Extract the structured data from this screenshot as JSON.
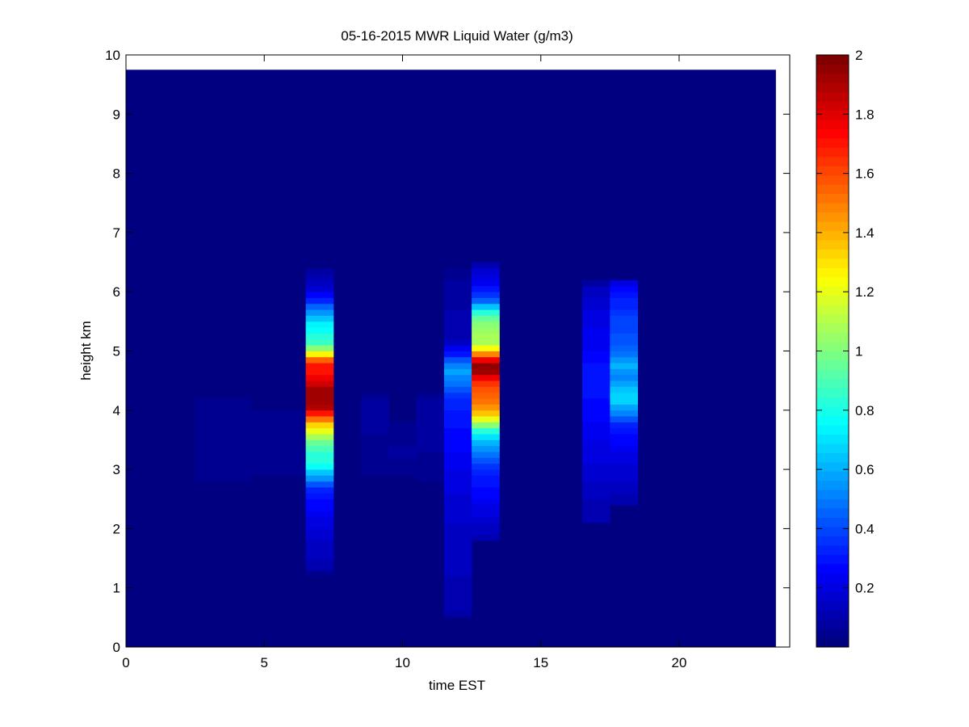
{
  "chart_data": {
    "type": "heatmap",
    "title": "05-16-2015 MWR Liquid Water (g/m3)",
    "xlabel": "time EST",
    "ylabel": "height km",
    "xlim": [
      0,
      24
    ],
    "ylim": [
      0,
      10
    ],
    "xticks": [
      0,
      5,
      10,
      15,
      20
    ],
    "yticks": [
      0,
      1,
      2,
      3,
      4,
      5,
      6,
      7,
      8,
      9,
      10
    ],
    "colormap": "jet",
    "background_value": 0.02,
    "data_extent": {
      "x": [
        0,
        23.5
      ],
      "y": [
        0,
        9.75
      ]
    },
    "colorbar": {
      "range": [
        0,
        2
      ],
      "ticks": [
        0.2,
        0.4,
        0.6,
        0.8,
        1,
        1.2,
        1.4,
        1.6,
        1.8,
        2
      ]
    },
    "columns": [
      {
        "x0": 2.5,
        "x1": 4.5,
        "profile": [
          [
            2.8,
            0.03
          ],
          [
            2.9,
            0.05
          ],
          [
            3.5,
            0.06
          ],
          [
            3.55,
            0.05
          ],
          [
            3.9,
            0.05
          ],
          [
            4.0,
            0.07
          ],
          [
            4.1,
            0.05
          ],
          [
            4.2,
            0.03
          ]
        ]
      },
      {
        "x0": 4.5,
        "x1": 5.5,
        "profile": [
          [
            2.9,
            0.03
          ],
          [
            3.0,
            0.05
          ],
          [
            3.6,
            0.06
          ],
          [
            3.65,
            0.04
          ],
          [
            3.95,
            0.05
          ],
          [
            4.05,
            0.03
          ]
        ]
      },
      {
        "x0": 5.5,
        "x1": 6.5,
        "profile": [
          [
            2.9,
            0.03
          ],
          [
            3.0,
            0.05
          ],
          [
            3.6,
            0.06
          ],
          [
            3.65,
            0.04
          ],
          [
            3.9,
            0.06
          ],
          [
            4.05,
            0.03
          ]
        ]
      },
      {
        "x0": 6.5,
        "x1": 7.5,
        "profile": [
          [
            1.2,
            0.02
          ],
          [
            1.4,
            0.12
          ],
          [
            1.7,
            0.14
          ],
          [
            2.0,
            0.18
          ],
          [
            2.4,
            0.26
          ],
          [
            2.7,
            0.36
          ],
          [
            2.9,
            0.6
          ],
          [
            3.1,
            0.8
          ],
          [
            3.3,
            0.85
          ],
          [
            3.5,
            1.0
          ],
          [
            3.65,
            1.2
          ],
          [
            3.8,
            1.4
          ],
          [
            3.95,
            1.7
          ],
          [
            4.05,
            1.88
          ],
          [
            4.3,
            1.95
          ],
          [
            4.45,
            1.82
          ],
          [
            4.6,
            1.72
          ],
          [
            4.8,
            1.68
          ],
          [
            4.9,
            1.4
          ],
          [
            5.0,
            1.15
          ],
          [
            5.1,
            0.88
          ],
          [
            5.3,
            0.8
          ],
          [
            5.5,
            0.7
          ],
          [
            5.7,
            0.5
          ],
          [
            5.85,
            0.33
          ],
          [
            6.1,
            0.14
          ],
          [
            6.3,
            0.1
          ],
          [
            6.45,
            0.02
          ]
        ]
      },
      {
        "x0": 8.5,
        "x1": 9.5,
        "profile": [
          [
            2.9,
            0.03
          ],
          [
            3.0,
            0.05
          ],
          [
            3.5,
            0.06
          ],
          [
            3.8,
            0.07
          ],
          [
            4.2,
            0.07
          ],
          [
            4.3,
            0.03
          ]
        ]
      },
      {
        "x0": 9.5,
        "x1": 10.5,
        "profile": [
          [
            2.9,
            0.03
          ],
          [
            3.0,
            0.05
          ],
          [
            3.25,
            0.07
          ],
          [
            3.5,
            0.06
          ],
          [
            3.7,
            0.05
          ],
          [
            3.8,
            0.02
          ]
        ]
      },
      {
        "x0": 10.5,
        "x1": 11.5,
        "profile": [
          [
            2.8,
            0.03
          ],
          [
            2.9,
            0.05
          ],
          [
            3.5,
            0.07
          ],
          [
            4.0,
            0.09
          ],
          [
            4.2,
            0.07
          ],
          [
            4.3,
            0.02
          ]
        ]
      },
      {
        "x0": 11.5,
        "x1": 12.5,
        "profile": [
          [
            0.5,
            0.03
          ],
          [
            0.6,
            0.1
          ],
          [
            1.0,
            0.12
          ],
          [
            1.5,
            0.13
          ],
          [
            2.0,
            0.15
          ],
          [
            2.5,
            0.18
          ],
          [
            3.0,
            0.22
          ],
          [
            3.5,
            0.27
          ],
          [
            4.0,
            0.3
          ],
          [
            4.3,
            0.38
          ],
          [
            4.5,
            0.5
          ],
          [
            4.65,
            0.58
          ],
          [
            4.8,
            0.48
          ],
          [
            4.95,
            0.3
          ],
          [
            5.2,
            0.12
          ],
          [
            5.6,
            0.1
          ],
          [
            6.0,
            0.08
          ],
          [
            6.4,
            0.05
          ],
          [
            6.45,
            0.02
          ]
        ]
      },
      {
        "x0": 12.5,
        "x1": 13.5,
        "profile": [
          [
            1.8,
            0.1
          ],
          [
            2.2,
            0.18
          ],
          [
            2.6,
            0.26
          ],
          [
            3.0,
            0.34
          ],
          [
            3.3,
            0.5
          ],
          [
            3.5,
            0.65
          ],
          [
            3.7,
            0.9
          ],
          [
            3.85,
            1.2
          ],
          [
            4.0,
            1.45
          ],
          [
            4.3,
            1.55
          ],
          [
            4.5,
            1.65
          ],
          [
            4.62,
            1.9
          ],
          [
            4.8,
            1.96
          ],
          [
            4.9,
            1.6
          ],
          [
            5.1,
            1.1
          ],
          [
            5.4,
            1.05
          ],
          [
            5.55,
            0.95
          ],
          [
            5.7,
            0.75
          ],
          [
            5.85,
            0.45
          ],
          [
            6.1,
            0.25
          ],
          [
            6.45,
            0.12
          ],
          [
            6.5,
            0.02
          ]
        ]
      },
      {
        "x0": 16.5,
        "x1": 17.5,
        "profile": [
          [
            2.1,
            0.1
          ],
          [
            2.5,
            0.12
          ],
          [
            3.0,
            0.18
          ],
          [
            3.5,
            0.22
          ],
          [
            3.8,
            0.25
          ],
          [
            4.2,
            0.28
          ],
          [
            4.6,
            0.3
          ],
          [
            5.0,
            0.25
          ],
          [
            5.6,
            0.2
          ],
          [
            6.1,
            0.12
          ],
          [
            6.2,
            0.02
          ]
        ]
      },
      {
        "x0": 17.5,
        "x1": 18.5,
        "profile": [
          [
            2.4,
            0.1
          ],
          [
            2.8,
            0.15
          ],
          [
            3.3,
            0.22
          ],
          [
            3.7,
            0.3
          ],
          [
            3.95,
            0.5
          ],
          [
            4.2,
            0.7
          ],
          [
            4.4,
            0.62
          ],
          [
            4.6,
            0.5
          ],
          [
            4.75,
            0.62
          ],
          [
            4.9,
            0.5
          ],
          [
            5.2,
            0.42
          ],
          [
            5.6,
            0.38
          ],
          [
            5.9,
            0.3
          ],
          [
            6.2,
            0.2
          ],
          [
            6.25,
            0.02
          ]
        ]
      }
    ]
  }
}
